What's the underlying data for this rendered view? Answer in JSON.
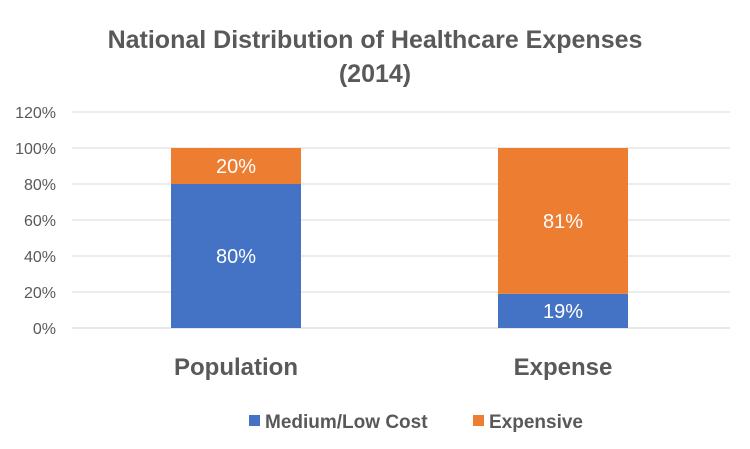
{
  "chart_data": {
    "type": "bar",
    "stacked": true,
    "title": "National Distribution of Healthcare Expenses (2014)",
    "title_lines": [
      "National Distribution of Healthcare Expenses",
      "(2014)"
    ],
    "categories": [
      "Population",
      "Expense"
    ],
    "series": [
      {
        "name": "Medium/Low Cost",
        "values": [
          80,
          19
        ],
        "labels": [
          "80%",
          "19%"
        ],
        "color": "#4472C4"
      },
      {
        "name": "Expensive",
        "values": [
          20,
          81
        ],
        "labels": [
          "20%",
          "81%"
        ],
        "color": "#ED7D31"
      }
    ],
    "ylim": [
      0,
      120
    ],
    "yticks": [
      "0%",
      "20%",
      "40%",
      "60%",
      "80%",
      "100%",
      "120%"
    ],
    "grid": true,
    "legend": "bottom",
    "xlabel": "",
    "ylabel": ""
  }
}
